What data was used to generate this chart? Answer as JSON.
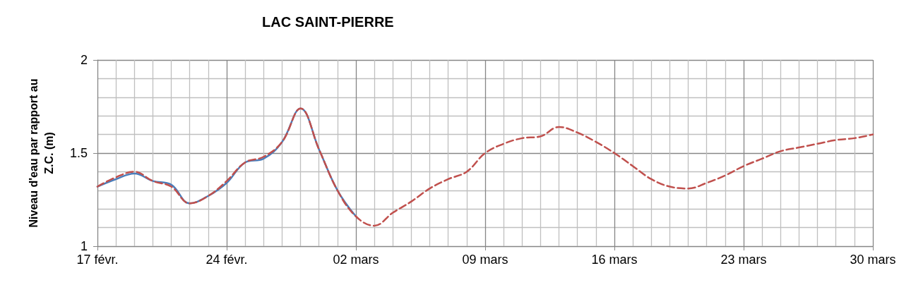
{
  "chart_data": {
    "type": "line",
    "title": "LAC SAINT-PIERRE",
    "ylabel": "Niveau d'eau par rapport au Z.C. (m)",
    "x": [
      "--02-17",
      "--02-18",
      "--02-19",
      "--02-20",
      "--02-21",
      "--02-22",
      "--02-23",
      "--02-24",
      "--02-25",
      "--02-26",
      "--02-27",
      "--02-28",
      "--02-29",
      "--03-01",
      "--03-02",
      "--03-03",
      "--03-04",
      "--03-05",
      "--03-06",
      "--03-07",
      "--03-08",
      "--03-09",
      "--03-10",
      "--03-11",
      "--03-12",
      "--03-13",
      "--03-14",
      "--03-15",
      "--03-16",
      "--03-17",
      "--03-18",
      "--03-19",
      "--03-20",
      "--03-21",
      "--03-22",
      "--03-23",
      "--03-24",
      "--03-25",
      "--03-26",
      "--03-27",
      "--03-28",
      "--03-29",
      "--03-30"
    ],
    "series": [
      {
        "color": "#c0504d",
        "line_style": "dashed",
        "values": [
          1.32,
          1.37,
          1.4,
          1.35,
          1.32,
          1.23,
          1.27,
          1.35,
          1.45,
          1.48,
          1.56,
          1.74,
          1.52,
          1.3,
          1.16,
          1.11,
          1.18,
          1.24,
          1.31,
          1.36,
          1.4,
          1.5,
          1.55,
          1.58,
          1.59,
          1.64,
          1.61,
          1.56,
          1.5,
          1.43,
          1.36,
          1.32,
          1.31,
          1.34,
          1.38,
          1.43,
          1.47,
          1.51,
          1.53,
          1.55,
          1.57,
          1.58,
          1.6
        ]
      },
      {
        "color": "#4a7ebb",
        "line_style": "solid",
        "values": [
          1.32,
          1.36,
          1.39,
          1.35,
          1.33,
          1.23,
          1.27,
          1.34,
          1.45,
          1.47,
          1.56,
          1.74,
          1.52,
          1.3,
          1.16,
          null,
          null,
          null,
          null,
          null,
          null,
          null,
          null,
          null,
          null,
          null,
          null,
          null,
          null,
          null,
          null,
          null,
          null,
          null,
          null,
          null,
          null,
          null,
          null,
          null,
          null,
          null,
          null
        ]
      }
    ],
    "xlim": [
      "--02-17",
      "--03-30"
    ],
    "xticks": [
      {
        "value": "--02-17",
        "label": "17 févr."
      },
      {
        "value": "--02-24",
        "label": "24 févr."
      },
      {
        "value": "--03-02",
        "label": "02 mars"
      },
      {
        "value": "--03-09",
        "label": "09 mars"
      },
      {
        "value": "--03-16",
        "label": "16 mars"
      },
      {
        "value": "--03-23",
        "label": "23 mars"
      },
      {
        "value": "--03-30",
        "label": "30 mars"
      }
    ],
    "ylim": [
      1,
      2
    ],
    "yticks": [
      1,
      1.5,
      2
    ],
    "grid": true,
    "marker": "none"
  }
}
